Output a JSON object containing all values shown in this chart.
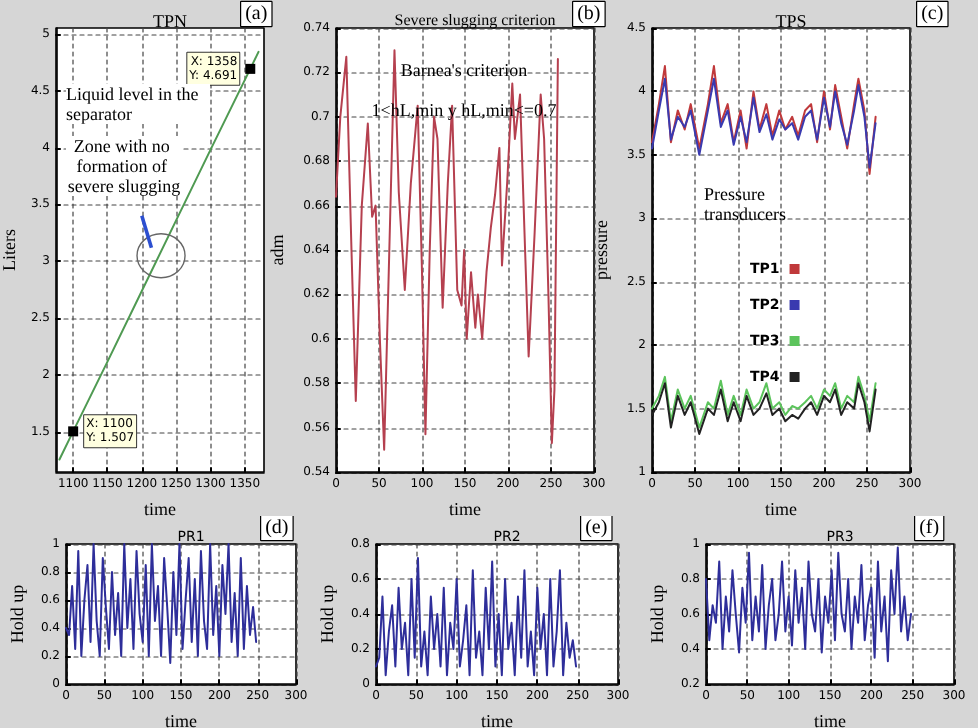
{
  "chart_data": [
    {
      "type": "line",
      "title": "TPN",
      "xlabel": "time",
      "ylabel": "Liters",
      "xlim": [
        1075,
        1378
      ],
      "ylim": [
        1.15,
        5.05
      ],
      "xticks": [
        1100,
        1150,
        1200,
        1250,
        1300,
        1350
      ],
      "yticks": [
        1.5,
        2,
        2.5,
        3,
        3.5,
        4,
        4.5,
        5
      ],
      "grid": true,
      "color": "#4f9a52",
      "x": [
        1080,
        1100,
        1150,
        1200,
        1250,
        1300,
        1358,
        1370
      ],
      "values": [
        1.26,
        1.507,
        2.12,
        2.74,
        3.36,
        3.98,
        4.691,
        4.84
      ],
      "annotations": [
        "Liquid level in the separator",
        "Zone with no formation of severe slugging",
        {
          "text": "X: 1100\nY: 1.507",
          "x": 1100,
          "y": 1.507
        },
        {
          "text": "X: 1358\nY: 4.691",
          "x": 1358,
          "y": 4.691
        },
        "(a)"
      ]
    },
    {
      "type": "line",
      "title": "Severe slugging criterion",
      "xlabel": "time",
      "ylabel": "adm",
      "xlim": [
        0,
        300
      ],
      "ylim": [
        0.54,
        0.74
      ],
      "xticks": [
        0,
        50,
        100,
        150,
        200,
        250,
        300
      ],
      "yticks": [
        0.54,
        0.56,
        0.58,
        0.6,
        0.62,
        0.64,
        0.66,
        0.68,
        0.7,
        0.72,
        0.74
      ],
      "grid": true,
      "color": "#b5404f",
      "x": [
        0,
        5,
        12,
        18,
        23,
        30,
        37,
        42,
        46,
        51,
        56,
        62,
        68,
        73,
        80,
        87,
        95,
        100,
        104,
        109,
        114,
        118,
        124,
        130,
        135,
        141,
        146,
        149,
        152,
        157,
        162,
        165,
        170,
        175,
        180,
        185,
        190,
        193,
        199,
        205,
        208,
        214,
        219,
        224,
        231,
        238,
        242,
        247,
        251,
        254,
        258
      ],
      "values": [
        0.664,
        0.7,
        0.727,
        0.64,
        0.572,
        0.66,
        0.697,
        0.655,
        0.66,
        0.6,
        0.55,
        0.64,
        0.73,
        0.666,
        0.622,
        0.67,
        0.705,
        0.63,
        0.557,
        0.64,
        0.7,
        0.69,
        0.614,
        0.67,
        0.705,
        0.622,
        0.615,
        0.64,
        0.6,
        0.63,
        0.605,
        0.62,
        0.6,
        0.63,
        0.65,
        0.665,
        0.686,
        0.633,
        0.67,
        0.715,
        0.69,
        0.71,
        0.65,
        0.592,
        0.648,
        0.71,
        0.69,
        0.62,
        0.553,
        0.577,
        0.726
      ],
      "annotations": [
        "Barnea's criterion",
        "1<hL,min y hL,min<=0.7",
        "(b)"
      ]
    },
    {
      "type": "line",
      "title": "TPS",
      "xlabel": "time",
      "ylabel": "pressure",
      "xlim": [
        0,
        300
      ],
      "ylim": [
        1,
        4.5
      ],
      "xticks": [
        0,
        50,
        100,
        150,
        200,
        250,
        300
      ],
      "yticks": [
        1,
        1.5,
        2,
        2.5,
        3,
        3.5,
        4,
        4.5
      ],
      "grid": true,
      "legend": "center",
      "x": [
        0,
        8,
        15,
        22,
        30,
        38,
        45,
        55,
        65,
        72,
        80,
        88,
        95,
        103,
        110,
        118,
        125,
        133,
        140,
        148,
        155,
        163,
        170,
        178,
        185,
        192,
        200,
        207,
        213,
        220,
        227,
        235,
        240,
        247,
        253,
        260
      ],
      "series": [
        {
          "name": "TP1",
          "color": "#c0393b",
          "values": [
            3.6,
            3.9,
            4.2,
            3.6,
            3.85,
            3.7,
            3.9,
            3.55,
            3.9,
            4.2,
            3.75,
            3.9,
            3.6,
            3.85,
            3.55,
            4.0,
            3.7,
            3.9,
            3.65,
            3.85,
            3.7,
            3.8,
            3.65,
            3.85,
            3.9,
            3.6,
            4.0,
            3.7,
            4.05,
            3.8,
            3.55,
            3.9,
            4.1,
            3.85,
            3.35,
            3.8
          ]
        },
        {
          "name": "TP2",
          "color": "#3a3ab0",
          "values": [
            3.55,
            3.85,
            4.1,
            3.62,
            3.8,
            3.72,
            3.85,
            3.5,
            3.85,
            4.1,
            3.72,
            3.85,
            3.58,
            3.8,
            3.6,
            3.95,
            3.68,
            3.82,
            3.62,
            3.78,
            3.7,
            3.75,
            3.62,
            3.8,
            3.85,
            3.62,
            3.95,
            3.72,
            4.0,
            3.75,
            3.58,
            3.85,
            4.05,
            3.8,
            3.4,
            3.75
          ]
        },
        {
          "name": "TP3",
          "color": "#5cc45c",
          "values": [
            1.5,
            1.6,
            1.75,
            1.4,
            1.65,
            1.5,
            1.6,
            1.35,
            1.55,
            1.5,
            1.72,
            1.45,
            1.6,
            1.45,
            1.65,
            1.5,
            1.55,
            1.7,
            1.5,
            1.55,
            1.45,
            1.52,
            1.5,
            1.55,
            1.6,
            1.5,
            1.65,
            1.6,
            1.7,
            1.5,
            1.6,
            1.55,
            1.75,
            1.6,
            1.4,
            1.7
          ]
        },
        {
          "name": "TP4",
          "color": "#222222",
          "values": [
            1.45,
            1.55,
            1.7,
            1.35,
            1.6,
            1.45,
            1.55,
            1.3,
            1.5,
            1.45,
            1.65,
            1.4,
            1.55,
            1.4,
            1.6,
            1.45,
            1.5,
            1.62,
            1.45,
            1.5,
            1.4,
            1.45,
            1.42,
            1.5,
            1.55,
            1.45,
            1.6,
            1.55,
            1.65,
            1.45,
            1.55,
            1.5,
            1.7,
            1.55,
            1.32,
            1.65
          ]
        }
      ],
      "annotations": [
        "Pressure transducers",
        "(c)"
      ]
    },
    {
      "type": "line",
      "title": "PR1",
      "xlabel": "time",
      "ylabel": "Hold up",
      "xlim": [
        0,
        300
      ],
      "ylim": [
        0,
        1
      ],
      "xticks": [
        0,
        50,
        100,
        150,
        200,
        250,
        300
      ],
      "yticks": [
        0,
        0.2,
        0.4,
        0.6,
        0.8,
        1
      ],
      "grid": true,
      "color": "#2e2e9a",
      "x": [
        0,
        4,
        8,
        12,
        16,
        20,
        24,
        28,
        32,
        36,
        40,
        44,
        48,
        52,
        56,
        60,
        64,
        68,
        72,
        76,
        80,
        84,
        88,
        92,
        96,
        100,
        104,
        108,
        112,
        116,
        120,
        124,
        128,
        132,
        136,
        140,
        144,
        148,
        152,
        156,
        160,
        164,
        168,
        172,
        176,
        180,
        184,
        188,
        192,
        196,
        200,
        204,
        208,
        212,
        216,
        220,
        224,
        228,
        232,
        236,
        240,
        244,
        248
      ],
      "values": [
        0.4,
        0.35,
        0.7,
        0.25,
        0.95,
        0.2,
        0.6,
        0.85,
        0.3,
        1,
        0.45,
        0.2,
        0.9,
        0.55,
        0.25,
        0.8,
        0.35,
        0.65,
        0.2,
        1,
        0.4,
        0.75,
        0.25,
        0.95,
        0.5,
        0.3,
        0.85,
        0.2,
        1,
        0.45,
        0.7,
        0.2,
        0.9,
        0.55,
        0.15,
        0.8,
        0.35,
        1,
        0.25,
        0.6,
        0.9,
        0.3,
        0.75,
        0.2,
        0.95,
        0.45,
        0.25,
        1,
        0.35,
        0.7,
        0.2,
        0.85,
        0.5,
        1,
        0.3,
        0.65,
        0.2,
        0.9,
        0.25,
        0.7,
        0.35,
        0.55,
        0.3
      ],
      "annotations": [
        "(d)"
      ]
    },
    {
      "type": "line",
      "title": "PR2",
      "xlabel": "time",
      "ylabel": "Hold up",
      "xlim": [
        0,
        300
      ],
      "ylim": [
        0,
        0.8
      ],
      "xticks": [
        0,
        50,
        100,
        150,
        200,
        250,
        300
      ],
      "yticks": [
        0,
        0.2,
        0.4,
        0.6,
        0.8
      ],
      "grid": true,
      "color": "#2e2e9a",
      "x": [
        0,
        4,
        8,
        12,
        16,
        20,
        24,
        28,
        32,
        36,
        40,
        44,
        48,
        52,
        56,
        60,
        64,
        68,
        72,
        76,
        80,
        84,
        88,
        92,
        96,
        100,
        104,
        108,
        112,
        116,
        120,
        124,
        128,
        132,
        136,
        140,
        144,
        148,
        152,
        156,
        160,
        164,
        168,
        172,
        176,
        180,
        184,
        188,
        192,
        196,
        200,
        204,
        208,
        212,
        216,
        220,
        224,
        228,
        232,
        236,
        240,
        244,
        248
      ],
      "values": [
        0.1,
        0.15,
        0.5,
        0.05,
        0.3,
        0.45,
        0.1,
        0.55,
        0.2,
        0.35,
        0.05,
        0.6,
        0.15,
        0.72,
        0.1,
        0.3,
        0.05,
        0.5,
        0.2,
        0.4,
        0.1,
        0.55,
        0.05,
        0.35,
        0.2,
        0.6,
        0.1,
        0.25,
        0.45,
        0.05,
        0.65,
        0.15,
        0.3,
        0.05,
        0.55,
        0.2,
        0.7,
        0.1,
        0.4,
        0.05,
        0.6,
        0.2,
        0.35,
        0.05,
        0.5,
        0.15,
        0.65,
        0.1,
        0.3,
        0.05,
        0.55,
        0.2,
        0.4,
        0.05,
        0.6,
        0.1,
        0.3,
        0.65,
        0.05,
        0.35,
        0.15,
        0.25,
        0.1
      ],
      "annotations": [
        "(e)"
      ]
    },
    {
      "type": "line",
      "title": "PR3",
      "xlabel": "time",
      "ylabel": "Hold up",
      "xlim": [
        0,
        300
      ],
      "ylim": [
        0.2,
        1
      ],
      "xticks": [
        0,
        50,
        100,
        150,
        200,
        250,
        300
      ],
      "yticks": [
        0.2,
        0.4,
        0.6,
        0.8,
        1
      ],
      "grid": true,
      "color": "#2e2e9a",
      "x": [
        0,
        4,
        8,
        12,
        16,
        20,
        24,
        28,
        32,
        36,
        40,
        44,
        48,
        52,
        56,
        60,
        64,
        68,
        72,
        76,
        80,
        84,
        88,
        92,
        96,
        100,
        104,
        108,
        112,
        116,
        120,
        124,
        128,
        132,
        136,
        140,
        144,
        148,
        152,
        156,
        160,
        164,
        168,
        172,
        176,
        180,
        184,
        188,
        192,
        196,
        200,
        204,
        208,
        212,
        216,
        220,
        224,
        228,
        232,
        236,
        240,
        244,
        248
      ],
      "values": [
        0.8,
        0.45,
        0.65,
        0.55,
        0.9,
        0.4,
        0.7,
        0.5,
        0.85,
        0.6,
        0.38,
        0.75,
        0.55,
        0.95,
        0.45,
        0.7,
        0.5,
        0.88,
        0.4,
        0.65,
        0.8,
        0.45,
        0.6,
        0.9,
        0.5,
        0.7,
        0.42,
        0.85,
        0.55,
        0.75,
        0.4,
        0.9,
        0.6,
        0.5,
        0.8,
        0.38,
        0.7,
        0.55,
        0.85,
        0.45,
        0.95,
        0.6,
        0.5,
        0.8,
        0.4,
        0.7,
        0.55,
        0.88,
        0.45,
        0.65,
        0.75,
        0.35,
        0.9,
        0.5,
        0.7,
        0.33,
        0.85,
        0.6,
        0.98,
        0.5,
        0.7,
        0.45,
        0.6
      ],
      "annotations": [
        "(f)"
      ]
    }
  ]
}
